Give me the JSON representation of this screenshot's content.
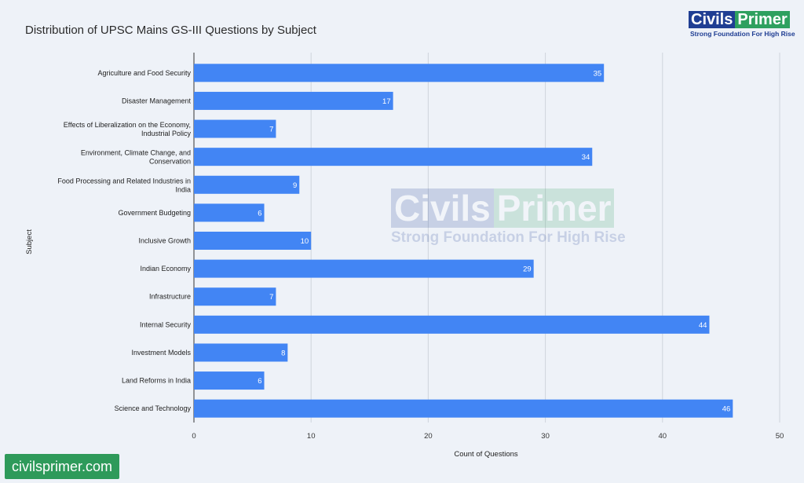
{
  "title": "Distribution of UPSC Mains GS-III Questions by Subject",
  "logo": {
    "word1": "Civils",
    "word2": "Primer",
    "tagline": "Strong Foundation For High Rise"
  },
  "watermark": {
    "word1": "Civils",
    "word2": "Primer",
    "tagline": "Strong Foundation For High Rise"
  },
  "footer_badge": "civilsprimer.com",
  "colors": {
    "bar": "#4285f4",
    "background": "#eef2f8",
    "grid": "#cfd4dc",
    "brand_blue": "#1f3e93",
    "brand_green": "#2ea05f"
  },
  "chart_data": {
    "type": "bar",
    "orientation": "horizontal",
    "categories": [
      [
        "Agriculture and Food Security"
      ],
      [
        "Disaster Management"
      ],
      [
        "Effects of Liberalization on the Economy,",
        "Industrial Policy"
      ],
      [
        "Environment, Climate Change, and",
        "Conservation"
      ],
      [
        "Food Processing and Related Industries in",
        "India"
      ],
      [
        "Government Budgeting"
      ],
      [
        "Inclusive Growth"
      ],
      [
        "Indian Economy"
      ],
      [
        "Infrastructure"
      ],
      [
        "Internal Security"
      ],
      [
        "Investment Models"
      ],
      [
        "Land Reforms in India"
      ],
      [
        "Science and Technology"
      ]
    ],
    "values": [
      35,
      17,
      7,
      34,
      9,
      6,
      10,
      29,
      7,
      44,
      8,
      6,
      46
    ],
    "xlabel": "Count of Questions",
    "ylabel": "Subject",
    "xlim": [
      0,
      50
    ],
    "xticks": [
      0,
      10,
      20,
      30,
      40,
      50
    ],
    "grid": "vertical",
    "data_labels": true,
    "legend": "none"
  }
}
